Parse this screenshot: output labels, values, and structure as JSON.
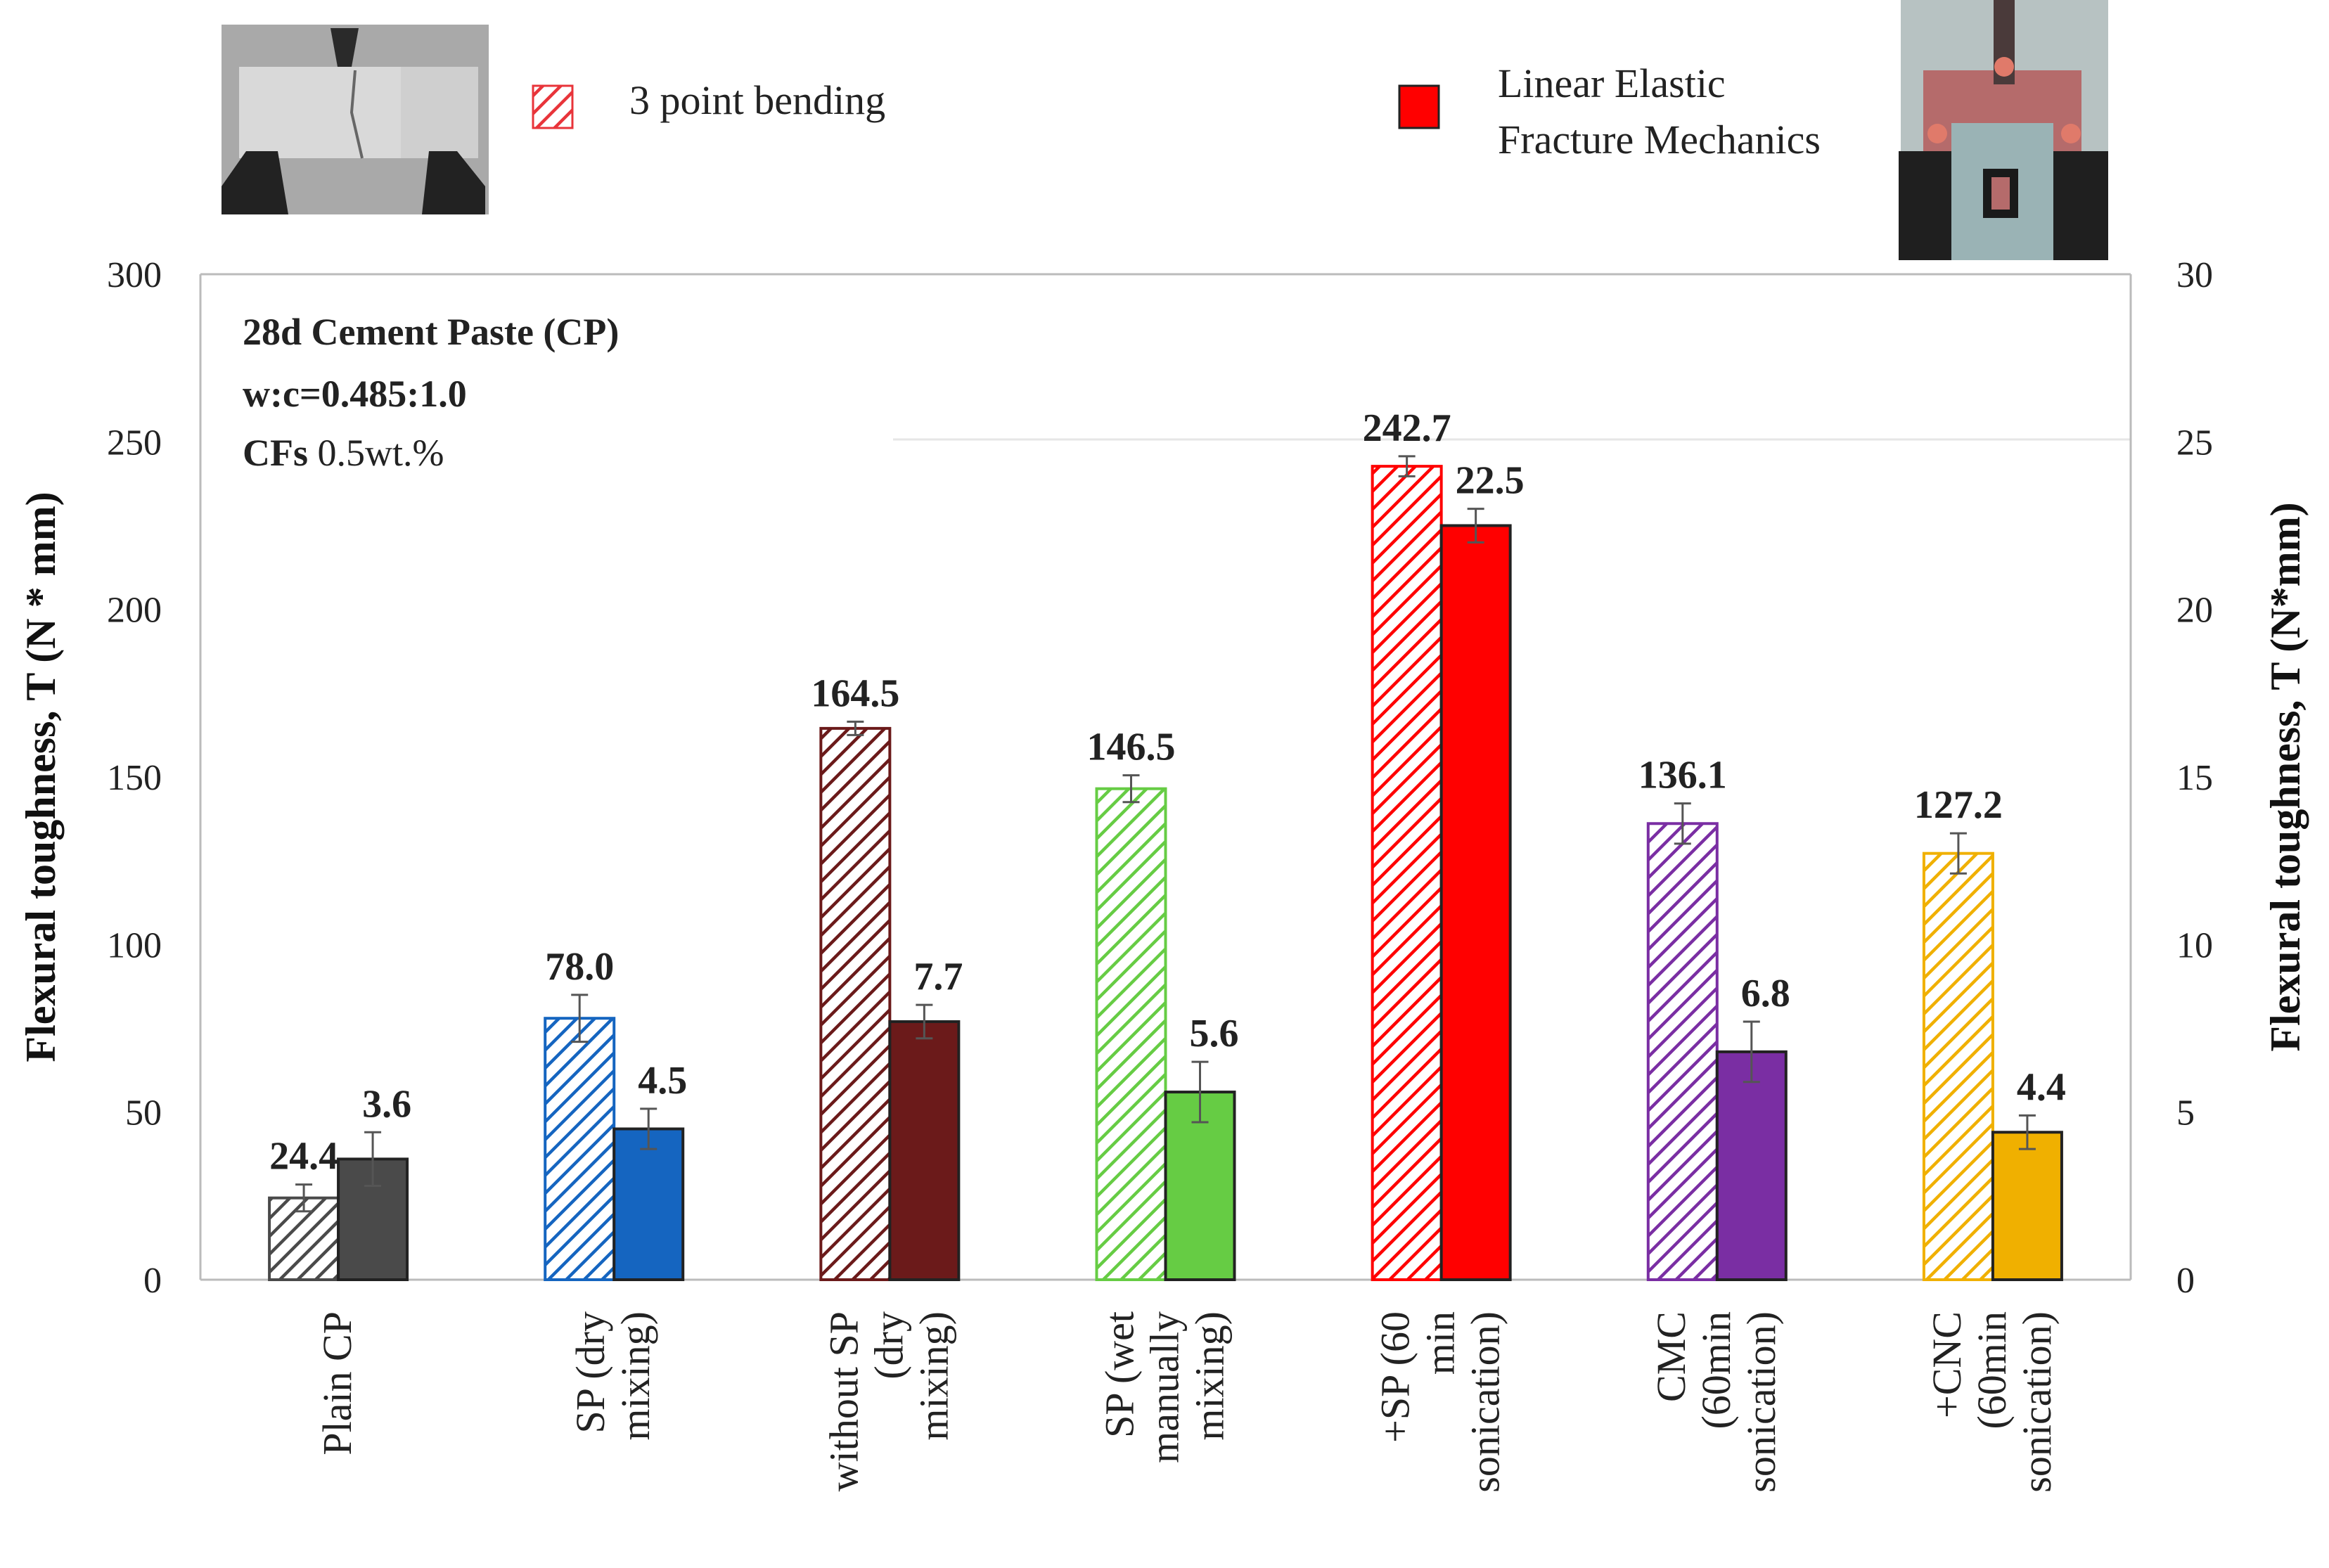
{
  "legend": {
    "items": [
      {
        "label": "3 point bending",
        "pattern": "hatched"
      },
      {
        "label": "Linear Elastic",
        "label2": "Fracture Mechanics",
        "pattern": "solid"
      }
    ],
    "hatch_color": "#e8343a",
    "solid_color": "#ff0000"
  },
  "annotation": {
    "line1": "28d Cement Paste (CP)",
    "line2": "w:c=0.485:1.0",
    "line3_bold": "CFs",
    "line3_rest": " 0.5wt.%"
  },
  "chart_data": {
    "type": "bar",
    "ylabel_left": "Flexural toughness, T (N * mm)",
    "ylabel_right": "Flexural toughness, T (N*mm)",
    "ylim_left": [
      0,
      300
    ],
    "ylim_right": [
      0,
      30
    ],
    "yticks_left": [
      "0",
      "50",
      "100",
      "150",
      "200",
      "250",
      "300"
    ],
    "yticks_right": [
      "0",
      "5",
      "10",
      "15",
      "20",
      "25",
      "30"
    ],
    "categories": [
      {
        "lines": [
          "Plain CP"
        ]
      },
      {
        "lines": [
          "SP (dry",
          "mixing)"
        ]
      },
      {
        "lines": [
          "without SP",
          "(dry",
          "mixing)"
        ]
      },
      {
        "lines": [
          "SP (wet",
          "manually",
          "mixing)"
        ]
      },
      {
        "lines": [
          "+SP (60",
          "min",
          "sonication)"
        ]
      },
      {
        "lines": [
          "CMC",
          "(60min",
          "sonication)"
        ]
      },
      {
        "lines": [
          "+CNC",
          "(60min",
          "sonication)"
        ]
      }
    ],
    "series": [
      {
        "name": "3 point bending",
        "axis": "left",
        "values": [
          24.4,
          78.0,
          164.5,
          146.5,
          242.7,
          136.1,
          127.2
        ],
        "labels": [
          "24.4",
          "78.0",
          "164.5",
          "146.5",
          "242.7",
          "136.1",
          "127.2"
        ],
        "errors": [
          4,
          7,
          2,
          4,
          3,
          6,
          6
        ]
      },
      {
        "name": "Linear Elastic Fracture Mechanics",
        "axis": "right",
        "values": [
          3.6,
          4.5,
          7.7,
          5.6,
          22.5,
          6.8,
          4.4
        ],
        "labels": [
          "3.6",
          "4.5",
          "7.7",
          "5.6",
          "22.5",
          "6.8",
          "4.4"
        ],
        "errors": [
          0.8,
          0.6,
          0.5,
          0.9,
          0.5,
          0.9,
          0.5
        ]
      }
    ],
    "colors": [
      "#4a4a4a",
      "#1565c0",
      "#6b1a1a",
      "#66cc44",
      "#ff0000",
      "#7a2ea3",
      "#f0b000"
    ],
    "grid": "horizontal-faint",
    "legend_position": "top"
  }
}
